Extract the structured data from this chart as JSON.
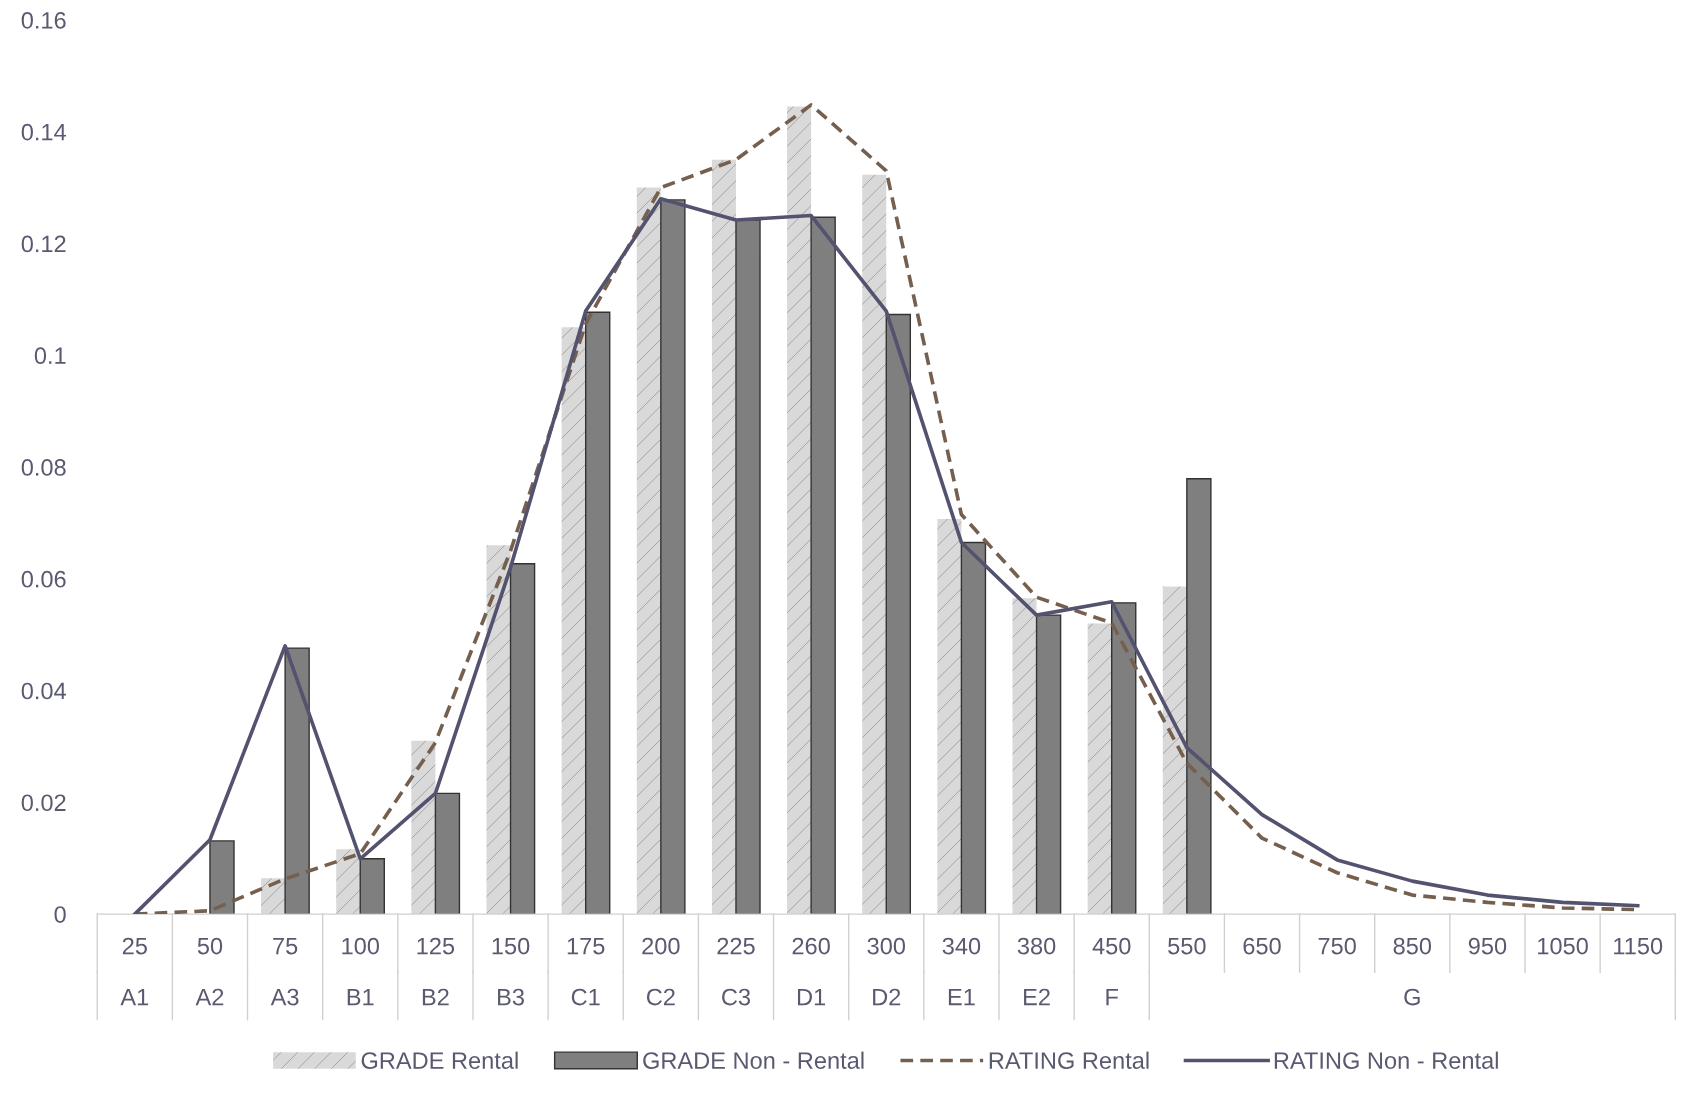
{
  "chart_data": {
    "type": "bar",
    "categories": [
      "25",
      "50",
      "75",
      "100",
      "125",
      "150",
      "175",
      "200",
      "225",
      "260",
      "300",
      "340",
      "380",
      "450",
      "550",
      "650",
      "750",
      "850",
      "950",
      "1050",
      "1150"
    ],
    "series": [
      {
        "name": "GRADE Rental",
        "color": "#d9d9d9",
        "values": [
          0,
          0,
          0.0064,
          0.0116,
          0.031,
          0.066,
          0.105,
          0.13,
          0.135,
          0.1445,
          0.1323,
          0.0707,
          0.0565,
          0.052,
          0.0586,
          null,
          null,
          null,
          null,
          null,
          null
        ]
      },
      {
        "name": "GRADE Non - Rental",
        "color": "#7f7f7f",
        "values": [
          0,
          0.0131,
          0.0476,
          0.0099,
          0.0216,
          0.0627,
          0.1077,
          0.1278,
          0.1242,
          0.1247,
          0.1073,
          0.0665,
          0.0535,
          0.0557,
          0.0779,
          null,
          null,
          null,
          null,
          null,
          null
        ]
      },
      {
        "name": "RATING Rental",
        "type": "line",
        "line_style": "dashed",
        "color": "#75604f",
        "values": [
          0,
          0.0006,
          0.0063,
          0.0108,
          0.0307,
          0.065,
          0.1056,
          0.13,
          0.135,
          0.1448,
          0.133,
          0.0715,
          0.0567,
          0.0521,
          0.027,
          0.0136,
          0.0074,
          0.0034,
          0.0021,
          0.0011,
          0.0008
        ]
      },
      {
        "name": "RATING Non - Rental",
        "type": "line",
        "line_style": "solid",
        "color": "#535370",
        "values": [
          0,
          0.0133,
          0.048,
          0.0099,
          0.0216,
          0.062,
          0.1079,
          0.128,
          0.1242,
          0.125,
          0.1079,
          0.0665,
          0.0535,
          0.0559,
          0.0298,
          0.0178,
          0.0097,
          0.0059,
          0.0034,
          0.0021,
          0.0015
        ]
      }
    ],
    "annotations": [
      "A1",
      "A2",
      "A3",
      "B1",
      "B2",
      "B3",
      "C1",
      "C2",
      "C3",
      "D1",
      "D2",
      "E1",
      "E2",
      "F",
      "G"
    ],
    "ylim": [
      0,
      0.16
    ],
    "yticks": [
      0,
      0.02,
      0.04,
      0.06,
      0.08,
      0.1,
      0.12,
      0.14,
      0.16
    ],
    "grid": false,
    "legend": "bottom",
    "marker": "none"
  }
}
